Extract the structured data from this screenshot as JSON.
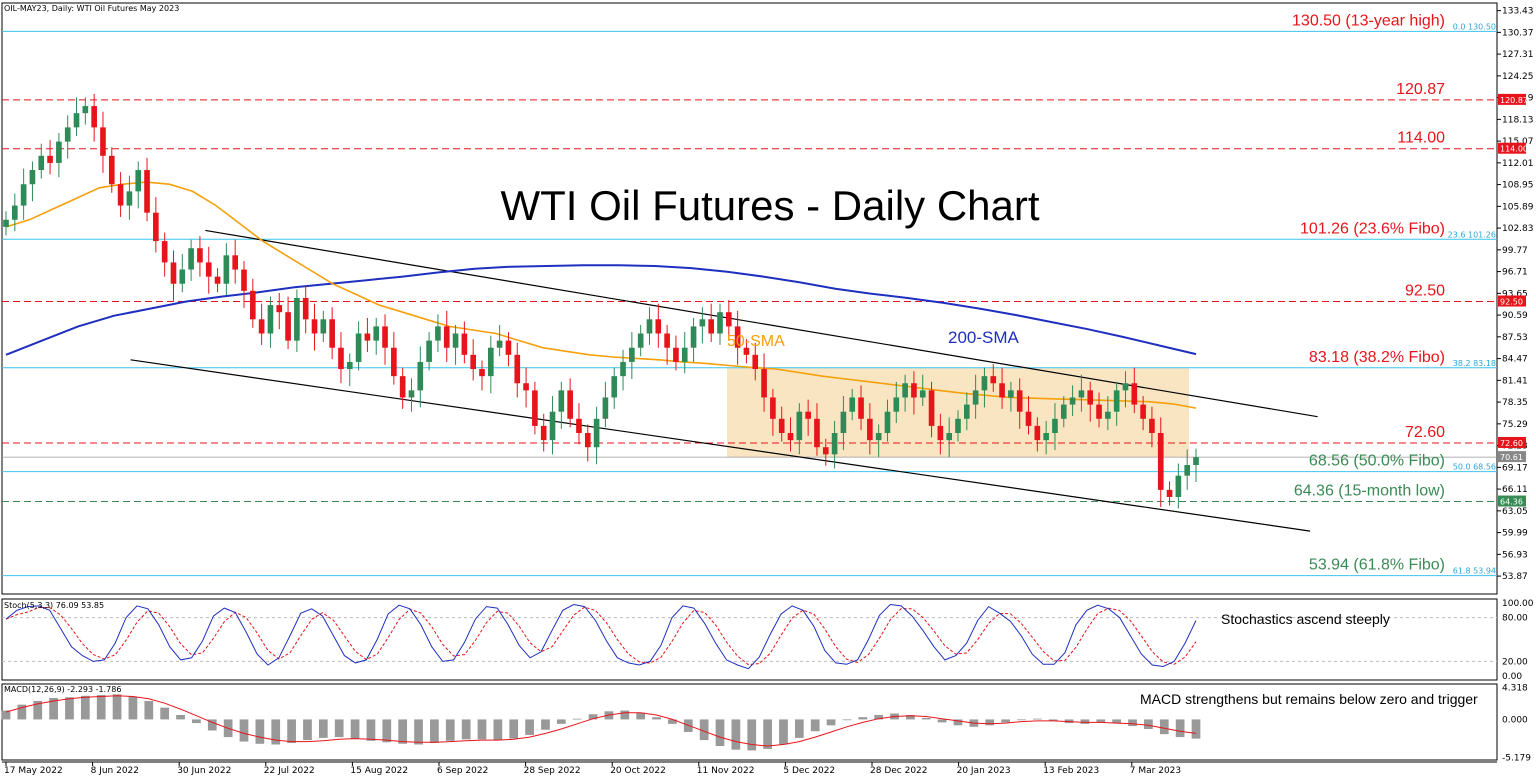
{
  "chart_data": {
    "type": "candlestick",
    "symbol_header": "OIL-MAY23, Daily:  WTI Oil Futures May 2023",
    "title": "WTI Oil Futures - Daily Chart",
    "ylim": [
      51.35,
      134.5
    ],
    "y_ticks": [
      "133.43",
      "130.37",
      "127.31",
      "124.25",
      "121.19",
      "118.13",
      "115.07",
      "112.01",
      "108.95",
      "105.89",
      "102.83",
      "99.77",
      "96.71",
      "93.65",
      "90.59",
      "87.53",
      "84.47",
      "81.41",
      "78.35",
      "75.29",
      "72.23",
      "69.17",
      "66.11",
      "63.05",
      "59.99",
      "56.93",
      "53.87"
    ],
    "x_labels": [
      "17 May 2022",
      "8 Jun 2022",
      "30 Jun 2022",
      "22 Jul 2022",
      "15 Aug 2022",
      "6 Sep 2022",
      "28 Sep 2022",
      "20 Oct 2022",
      "11 Nov 2022",
      "5 Dec 2022",
      "28 Dec 2022",
      "20 Jan 2023",
      "13 Feb 2023",
      "7 Mar 2023"
    ],
    "close_series": [
      104,
      106,
      109,
      111,
      113,
      112,
      115,
      117,
      119,
      120,
      117,
      113,
      109,
      106,
      108,
      111,
      105,
      101,
      98,
      95,
      97,
      100,
      98,
      96,
      95,
      99,
      97,
      94,
      90,
      88,
      92,
      91,
      87,
      93,
      90,
      88,
      90,
      86,
      83,
      84,
      88,
      87,
      89,
      86,
      82,
      79,
      80,
      84,
      87,
      89,
      86,
      88,
      85,
      83,
      82,
      86,
      87,
      85,
      81,
      80,
      75,
      73,
      77,
      80,
      76,
      74,
      72,
      76,
      79,
      82,
      84,
      86,
      88,
      90,
      88,
      86,
      84,
      86,
      89,
      90,
      88,
      91,
      89,
      86,
      85,
      83,
      79,
      76,
      74,
      73,
      77,
      76,
      72,
      71,
      74,
      77,
      79,
      76,
      73,
      74,
      77,
      79,
      81,
      79,
      80,
      75,
      73,
      74,
      76,
      78,
      80,
      82,
      81,
      79,
      80,
      77,
      75,
      73,
      74,
      76,
      78,
      79,
      80,
      78,
      76,
      77,
      80,
      81,
      78,
      76,
      74,
      66,
      65,
      68,
      69.5,
      70.6
    ],
    "sma50": {
      "label": "50-SMA",
      "color": "#f5a00a",
      "values": [
        103,
        104,
        105.5,
        107,
        108.5,
        109,
        109.3,
        109,
        108,
        106,
        103.5,
        101,
        99,
        97,
        95,
        93.5,
        92,
        91,
        90,
        89,
        88.5,
        88,
        87,
        86,
        85.5,
        85,
        84.7,
        84.5,
        84.3,
        84,
        83.8,
        83.5,
        83.2,
        83,
        82.5,
        82,
        81.6,
        81.2,
        80.8,
        80.4,
        80,
        79.6,
        79.3,
        79,
        78.9,
        78.8,
        78.7,
        78.6,
        78.5,
        78.4,
        78.1,
        77.5
      ]
    },
    "sma200": {
      "label": "200-SMA",
      "color": "#1f2fbf",
      "values": [
        85,
        87,
        89,
        90.5,
        91.5,
        92.5,
        93.2,
        93.8,
        94.5,
        95,
        95.5,
        96,
        96.6,
        97.1,
        97.4,
        97.5,
        97.6,
        97.6,
        97.5,
        97.2,
        96.7,
        96,
        95.2,
        94.3,
        93.6,
        93,
        92.3,
        91.5,
        90.6,
        89.6,
        88.6,
        87.5,
        86.3,
        85.1
      ]
    },
    "horizontal_levels": [
      {
        "value": 130.5,
        "label": "130.50 (13-year high)",
        "style": "solid-cyan",
        "color": "#e8141b",
        "fibo_tag": "0.0 130.50"
      },
      {
        "value": 120.87,
        "label": "120.87",
        "style": "dashed-red",
        "color": "#e8141b",
        "price_tag": "120.87"
      },
      {
        "value": 114.0,
        "label": "114.00",
        "style": "dashed-red",
        "color": "#e8141b",
        "price_tag": "114.00"
      },
      {
        "value": 101.26,
        "label": "101.26 (23.6% Fibo)",
        "style": "solid-cyan",
        "color": "#e8141b",
        "fibo_tag": "23.6 101.26"
      },
      {
        "value": 92.5,
        "label": "92.50",
        "style": "dashed-red",
        "color": "#e8141b",
        "price_tag": "92.50"
      },
      {
        "value": 83.18,
        "label": "83.18 (38.2% Fibo)",
        "style": "solid-cyan",
        "color": "#e8141b",
        "fibo_tag": "38.2 83.18"
      },
      {
        "value": 72.6,
        "label": "72.60",
        "style": "dashed-red",
        "color": "#e8141b",
        "price_tag": "72.60"
      },
      {
        "value": 68.56,
        "label": "68.56 (50.0% Fibo)",
        "style": "solid-cyan",
        "color": "#3a8a55",
        "fibo_tag": "50.0 68.56"
      },
      {
        "value": 64.36,
        "label": "64.36 (15-month low)",
        "style": "dashed-green",
        "color": "#3a8a55",
        "price_tag": "64.36"
      },
      {
        "value": 53.94,
        "label": "53.94 (61.8% Fibo)",
        "style": "solid-cyan",
        "color": "#3a8a55",
        "fibo_tag": "61.8 53.94"
      }
    ],
    "current_price_tag": "70.61",
    "channel_lines": [
      {
        "from": [
          0.136,
          102.5
        ],
        "to": [
          0.88,
          76.3
        ]
      },
      {
        "from": [
          0.086,
          84.3
        ],
        "to": [
          0.875,
          60.2
        ]
      }
    ],
    "range_box": {
      "y_top": 83.18,
      "y_bottom": 70.6,
      "color": "#f8dcae"
    },
    "annotations": {
      "sma50": "50-SMA",
      "sma200": "200-SMA"
    },
    "colors": {
      "up": "#2e8b57",
      "down": "#e8141b",
      "tag_red": "#e8141b",
      "tag_green": "#3a8a55",
      "tag_grey": "#888888"
    },
    "stochastic": {
      "header": "Stoch(5,3,3) 76.09 53.85",
      "ylim": [
        0,
        100
      ],
      "y_ticks": [
        "100.00",
        "80.00",
        "20.00",
        "0.00"
      ],
      "annotation": "Stochastics ascend steeply",
      "k_color": "#1f2fbf",
      "d_color": "#e8141b",
      "k_values": [
        78,
        90,
        95,
        96,
        90,
        65,
        40,
        28,
        20,
        22,
        45,
        80,
        96,
        92,
        70,
        40,
        22,
        25,
        48,
        82,
        93,
        87,
        60,
        30,
        15,
        25,
        55,
        86,
        92,
        82,
        55,
        28,
        18,
        22,
        50,
        85,
        97,
        92,
        70,
        40,
        20,
        22,
        46,
        78,
        95,
        93,
        70,
        42,
        25,
        33,
        62,
        90,
        98,
        95,
        76,
        48,
        25,
        18,
        15,
        20,
        42,
        80,
        96,
        93,
        72,
        45,
        22,
        15,
        10,
        26,
        57,
        85,
        96,
        90,
        68,
        35,
        18,
        16,
        22,
        50,
        83,
        98,
        96,
        82,
        62,
        40,
        22,
        28,
        45,
        76,
        95,
        86,
        75,
        55,
        30,
        16,
        16,
        32,
        70,
        90,
        97,
        92,
        80,
        55,
        30,
        15,
        13,
        20,
        45,
        76
      ]
    },
    "macd": {
      "header": "MACD(12,26,9) -2.293 -1.786",
      "ylim": [
        -5.5,
        4.8
      ],
      "y_ticks": [
        "4.318",
        "0.000",
        "-5.179"
      ],
      "annotation": "MACD strengthens but remains below zero and trigger",
      "hist_color": "#999999",
      "signal_color": "#e8141b",
      "hist_values": [
        1.2,
        2.0,
        2.5,
        2.9,
        3.0,
        3.2,
        3.3,
        3.4,
        3.1,
        2.5,
        1.6,
        0.6,
        -0.5,
        -1.5,
        -2.4,
        -3.0,
        -3.3,
        -3.4,
        -3.2,
        -2.8,
        -2.5,
        -2.4,
        -2.6,
        -2.9,
        -3.1,
        -3.3,
        -3.4,
        -3.2,
        -2.9,
        -2.7,
        -2.7,
        -2.8,
        -2.6,
        -2.1,
        -1.4,
        -0.6,
        0.1,
        0.7,
        1.1,
        1.2,
        0.9,
        0.3,
        -0.6,
        -1.7,
        -2.8,
        -3.6,
        -4.1,
        -4.2,
        -4.0,
        -3.4,
        -2.5,
        -1.6,
        -0.8,
        -0.1,
        0.3,
        0.6,
        0.8,
        0.6,
        0.2,
        -0.4,
        -0.8,
        -1.0,
        -0.8,
        -0.4,
        0.0,
        0.1,
        -0.2,
        -0.5,
        -0.6,
        -0.4,
        -0.5,
        -0.9,
        -1.3,
        -2.0,
        -2.4,
        -2.6
      ],
      "signal_values": [
        1.0,
        1.6,
        2.1,
        2.5,
        2.8,
        3.0,
        3.1,
        3.2,
        3.1,
        2.8,
        2.2,
        1.4,
        0.5,
        -0.4,
        -1.2,
        -1.9,
        -2.4,
        -2.8,
        -3.0,
        -3.0,
        -2.9,
        -2.7,
        -2.6,
        -2.7,
        -2.8,
        -3.0,
        -3.1,
        -3.1,
        -3.0,
        -2.9,
        -2.8,
        -2.8,
        -2.7,
        -2.4,
        -1.9,
        -1.3,
        -0.6,
        0.1,
        0.6,
        0.9,
        0.9,
        0.6,
        0.0,
        -0.8,
        -1.6,
        -2.4,
        -3.0,
        -3.4,
        -3.6,
        -3.4,
        -3.0,
        -2.4,
        -1.7,
        -1.0,
        -0.4,
        0.1,
        0.4,
        0.5,
        0.4,
        0.1,
        -0.2,
        -0.5,
        -0.6,
        -0.5,
        -0.3,
        -0.2,
        -0.2,
        -0.3,
        -0.4,
        -0.4,
        -0.5,
        -0.6,
        -0.8,
        -1.2,
        -1.6,
        -1.9
      ]
    }
  }
}
